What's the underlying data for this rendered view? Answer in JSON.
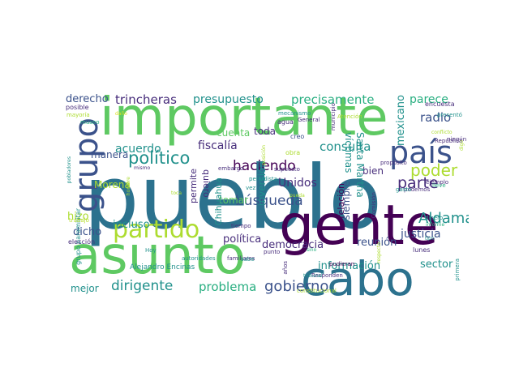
{
  "palette": {
    "purple": "#440154",
    "indigo": "#472d7b",
    "blue": "#3b528b",
    "steel": "#2c728e",
    "teal": "#21918c",
    "green": "#28ae80",
    "lime": "#5ec962",
    "yellowgreen": "#addc30",
    "yellow": "#d9e021",
    "lightlime": "#b5de2b"
  },
  "words": [
    {
      "id": "pueblo",
      "text": "pueblo",
      "c": "steel"
    },
    {
      "id": "importante",
      "text": "importante",
      "c": "lime"
    },
    {
      "id": "gente",
      "text": "gente",
      "c": "purple"
    },
    {
      "id": "asunto",
      "text": "asunto",
      "c": "lime"
    },
    {
      "id": "cabo",
      "text": "cabo",
      "c": "steel"
    },
    {
      "id": "grupo",
      "text": "grupo",
      "c": "blue"
    },
    {
      "id": "pais",
      "text": "país",
      "c": "blue"
    },
    {
      "id": "partido",
      "text": "partido",
      "c": "yellowgreen"
    },
    {
      "id": "politico",
      "text": "político",
      "c": "teal"
    },
    {
      "id": "aldama",
      "text": "Aldama",
      "c": "teal"
    },
    {
      "id": "haciendo",
      "text": "haciendo",
      "c": "purple"
    },
    {
      "id": "parte",
      "text": "parte",
      "c": "indigo"
    },
    {
      "id": "poder",
      "text": "poder",
      "c": "yellowgreen"
    },
    {
      "id": "gobierno",
      "text": "gobierno",
      "c": "blue"
    },
    {
      "id": "dirigente",
      "text": "dirigente",
      "c": "teal"
    },
    {
      "id": "busqueda",
      "text": "búsqueda",
      "c": "blue"
    },
    {
      "id": "problema",
      "text": "problema",
      "c": "green"
    },
    {
      "id": "trincheras",
      "text": "trincheras",
      "c": "indigo"
    },
    {
      "id": "presupuesto",
      "text": "presupuesto",
      "c": "teal"
    },
    {
      "id": "precisamente",
      "text": "precisamente",
      "c": "green"
    },
    {
      "id": "parece",
      "text": "parece",
      "c": "green"
    },
    {
      "id": "radio",
      "text": "radio",
      "c": "blue"
    },
    {
      "id": "consulta",
      "text": "consulta",
      "c": "teal"
    },
    {
      "id": "acuerdo",
      "text": "acuerdo",
      "c": "teal"
    },
    {
      "id": "fiscalia",
      "text": "fiscalía",
      "c": "indigo"
    },
    {
      "id": "justicia",
      "text": "justicia",
      "c": "blue"
    },
    {
      "id": "unidos",
      "text": "Unidos",
      "c": "indigo"
    },
    {
      "id": "democracia",
      "text": "democracia",
      "c": "indigo"
    },
    {
      "id": "reunion",
      "text": "reunión",
      "c": "blue"
    },
    {
      "id": "informacion",
      "text": "información",
      "c": "teal"
    },
    {
      "id": "sector",
      "text": "sector",
      "c": "teal"
    },
    {
      "id": "politica",
      "text": "política",
      "c": "indigo"
    },
    {
      "id": "incluso",
      "text": "incluso",
      "c": "teal"
    },
    {
      "id": "dicho",
      "text": "dicho",
      "c": "blue"
    },
    {
      "id": "hizo",
      "text": "hizo",
      "c": "yellowgreen"
    },
    {
      "id": "morena",
      "text": "Morena",
      "c": "yellowgreen"
    },
    {
      "id": "manera",
      "text": "manera",
      "c": "blue"
    },
    {
      "id": "derecho",
      "text": "derecho",
      "c": "blue"
    },
    {
      "id": "mejor",
      "text": "mejor",
      "c": "teal"
    },
    {
      "id": "toda",
      "text": "toda",
      "c": "indigo"
    },
    {
      "id": "cuenta",
      "text": "cuenta",
      "c": "lime"
    },
    {
      "id": "tomar",
      "text": "tomar",
      "c": "lime"
    },
    {
      "id": "bien",
      "text": "bien",
      "c": "indigo"
    },
    {
      "id": "mexicano",
      "text": "mexicano",
      "c": "teal"
    },
    {
      "id": "siempre",
      "text": "siempre",
      "c": "blue"
    },
    {
      "id": "victimas",
      "text": "víctimas",
      "c": "teal"
    },
    {
      "id": "santamartha",
      "text": "Santa Martha",
      "c": "teal"
    },
    {
      "id": "relacion",
      "text": "relación",
      "c": "purple"
    },
    {
      "id": "inversion",
      "text": "inversión",
      "c": "teal"
    },
    {
      "id": "quiero",
      "text": "quiero",
      "c": "indigo"
    },
    {
      "id": "permite",
      "text": "permite",
      "c": "indigo"
    },
    {
      "id": "chihuahua",
      "text": "Chihuahua",
      "c": "teal"
    },
    {
      "id": "encuesta",
      "text": "encuesta",
      "c": "indigo"
    },
    {
      "id": "alejandro",
      "text": "Alejandro Encinas",
      "c": "teal"
    },
    {
      "id": "grupoparamilitar",
      "text": "grupo paramilitar",
      "c": "teal"
    },
    {
      "id": "eleccion",
      "text": "elección",
      "c": "indigo"
    },
    {
      "id": "trabajo",
      "text": "trabajo",
      "c": "lightlime"
    },
    {
      "id": "hoy",
      "text": "Hoy",
      "c": "teal"
    },
    {
      "id": "posible",
      "text": "posible",
      "c": "indigo"
    },
    {
      "id": "mayoria",
      "text": "mayoría",
      "c": "yellowgreen"
    },
    {
      "id": "museo",
      "text": "museo",
      "c": "green"
    },
    {
      "id": "dano",
      "text": "daño",
      "c": "yellow"
    },
    {
      "id": "agua",
      "text": "agua",
      "c": "indigo"
    },
    {
      "id": "creo",
      "text": "creo",
      "c": "blue"
    },
    {
      "id": "obra",
      "text": "obra",
      "c": "yellowgreen"
    },
    {
      "id": "general",
      "text": "General",
      "c": "indigo"
    },
    {
      "id": "atencion",
      "text": "Atención",
      "c": "yellowgreen"
    },
    {
      "id": "municipio",
      "text": "municipio",
      "c": "indigo"
    },
    {
      "id": "mecanismo",
      "text": "mecanismo",
      "c": "teal"
    },
    {
      "id": "presento",
      "text": "presentó",
      "c": "teal"
    },
    {
      "id": "republica",
      "text": "República",
      "c": "indigo"
    },
    {
      "id": "conflicto",
      "text": "conflicto",
      "c": "yellowgreen"
    },
    {
      "id": "ninguno",
      "text": "ningún",
      "c": "indigo"
    },
    {
      "id": "ejemplo",
      "text": "ejemplo",
      "c": "indigo"
    },
    {
      "id": "podemos",
      "text": "podemos",
      "c": "indigo"
    },
    {
      "id": "lleve",
      "text": "lleve",
      "c": "green"
    },
    {
      "id": "dinero",
      "text": "dinero",
      "c": "teal"
    },
    {
      "id": "informe",
      "text": "informe",
      "c": "green"
    },
    {
      "id": "lunes",
      "text": "lunes",
      "c": "indigo"
    },
    {
      "id": "primera",
      "text": "primera",
      "c": "teal"
    },
    {
      "id": "proposito",
      "text": "propósito",
      "c": "indigo"
    },
    {
      "id": "gasto",
      "text": "gasto",
      "c": "teal"
    },
    {
      "id": "supuesto",
      "text": "supuesto",
      "c": "indigo"
    },
    {
      "id": "periodista",
      "text": "periodista",
      "c": "teal"
    },
    {
      "id": "embargo",
      "text": "embargo",
      "c": "indigo"
    },
    {
      "id": "mismo",
      "text": "mismo",
      "c": "indigo"
    },
    {
      "id": "toca",
      "text": "toca",
      "c": "yellowgreen"
    },
    {
      "id": "vez",
      "text": "vez",
      "c": "teal"
    },
    {
      "id": "puede",
      "text": "pueda",
      "c": "yellowgreen"
    },
    {
      "id": "comision",
      "text": "Comisión",
      "c": "indigo"
    },
    {
      "id": "pudieran",
      "text": "pudieran",
      "c": "purple"
    },
    {
      "id": "responden",
      "text": "Responden",
      "c": "indigo"
    },
    {
      "id": "constitucional",
      "text": "constitucional",
      "c": "yellowgreen"
    },
    {
      "id": "autoridades",
      "text": "autoridades",
      "c": "teal"
    },
    {
      "id": "familiares",
      "text": "familiares",
      "c": "indigo"
    },
    {
      "id": "tiempo",
      "text": "tiempo",
      "c": "indigo"
    },
    {
      "id": "sabe",
      "text": "sabe",
      "c": "teal"
    },
    {
      "id": "punto",
      "text": "punto",
      "c": "indigo"
    },
    {
      "id": "anos",
      "text": "años",
      "c": "indigo"
    },
    {
      "id": "pobladores",
      "text": "pobladores",
      "c": "teal"
    },
    {
      "id": "hombre",
      "text": "hombre",
      "c": "yellowgreen"
    },
    {
      "id": "tribunal",
      "text": "tribunal",
      "c": "teal"
    },
    {
      "id": "sino",
      "text": "sino",
      "c": "green"
    },
    {
      "id": "digo",
      "text": "digo",
      "c": "yellowgreen"
    },
    {
      "id": "tipo",
      "text": "tipo",
      "c": "teal"
    },
    {
      "id": "parecer",
      "text": "respecto",
      "c": "yellowgreen"
    },
    {
      "id": "posicion",
      "text": "posición",
      "c": "yellowgreen"
    }
  ]
}
